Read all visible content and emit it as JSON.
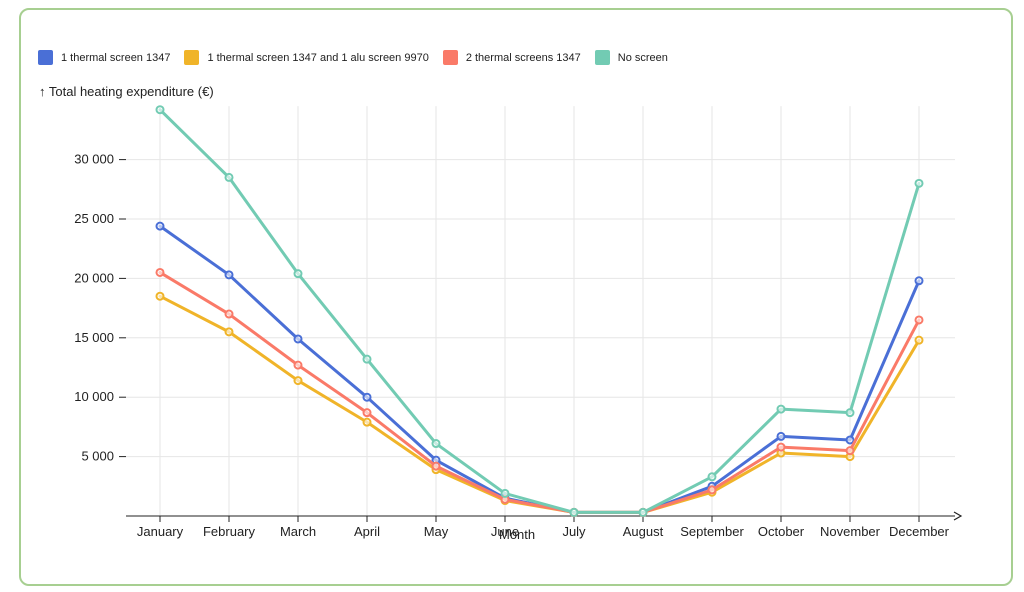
{
  "chart_data": {
    "type": "line",
    "xlabel": "Month",
    "ylabel": "↑ Total heating expenditure (€)",
    "categories": [
      "January",
      "February",
      "March",
      "April",
      "May",
      "June",
      "July",
      "August",
      "September",
      "October",
      "November",
      "December"
    ],
    "yticks": [
      5000,
      10000,
      15000,
      20000,
      25000,
      30000
    ],
    "ytick_labels": [
      "5 000",
      "10 000",
      "15 000",
      "20 000",
      "25 000",
      "30 000"
    ],
    "ylim": [
      0,
      34500
    ],
    "grid": true,
    "legend_position": "top-left",
    "series": [
      {
        "name": "1 thermal screen 1347",
        "color": "#4a6fd6",
        "values": [
          24400,
          20300,
          14900,
          10000,
          4700,
          1500,
          300,
          300,
          2500,
          6700,
          6400,
          19800
        ]
      },
      {
        "name": "1 thermal screen 1347 and 1 alu screen 9970",
        "color": "#f0b429",
        "values": [
          18500,
          15500,
          11400,
          7900,
          3900,
          1300,
          300,
          300,
          2000,
          5300,
          5000,
          14800
        ]
      },
      {
        "name": "2 thermal screens 1347",
        "color": "#fa7a68",
        "values": [
          20500,
          17000,
          12700,
          8700,
          4200,
          1400,
          300,
          300,
          2200,
          5800,
          5500,
          16500
        ]
      },
      {
        "name": "No screen",
        "color": "#72cbb3",
        "values": [
          34200,
          28500,
          20400,
          13200,
          6100,
          1900,
          300,
          300,
          3300,
          9000,
          8700,
          28000
        ]
      }
    ]
  }
}
